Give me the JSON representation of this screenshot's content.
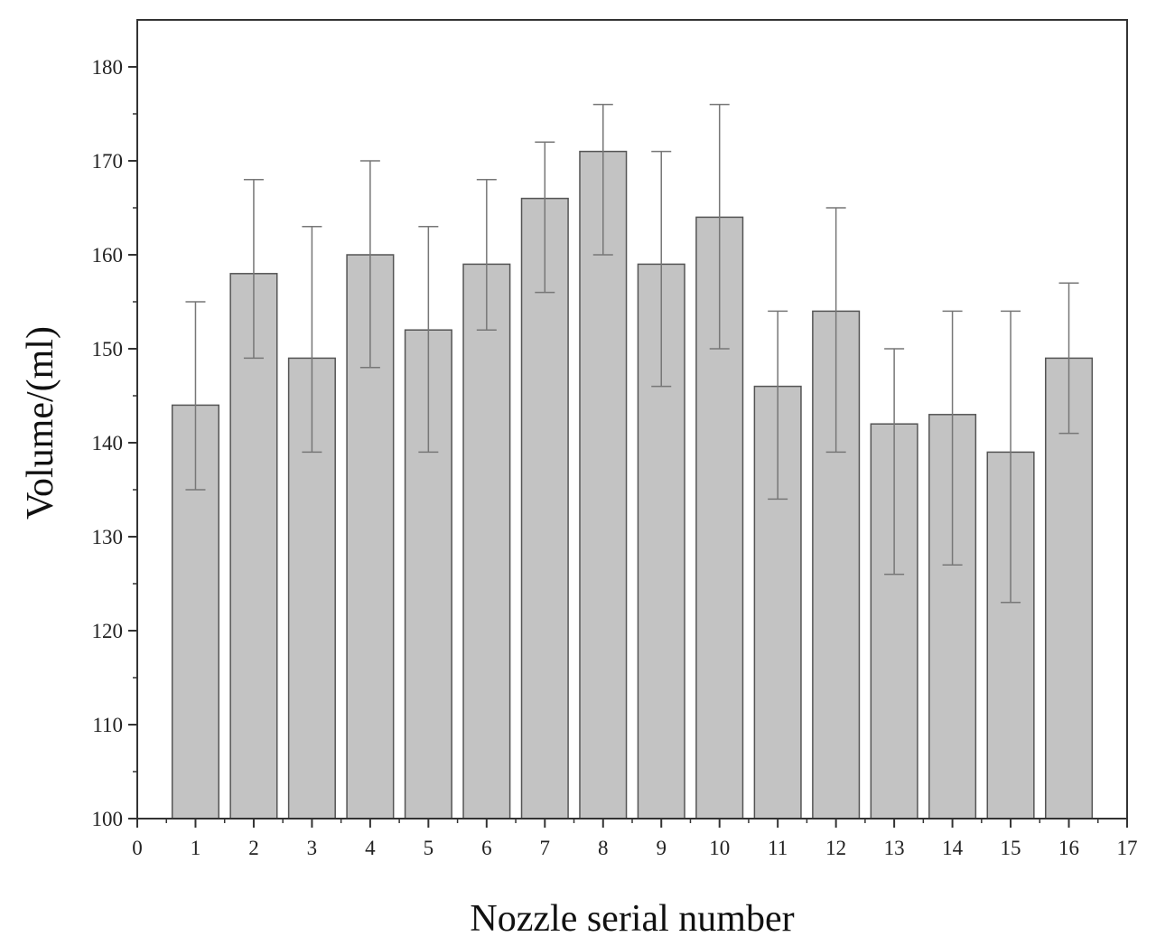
{
  "chart_data": {
    "type": "bar",
    "title": "",
    "xlabel": "Nozzle serial number",
    "ylabel": "Volume/(ml)",
    "xlim": [
      0,
      17
    ],
    "ylim": [
      100,
      185
    ],
    "x_ticks": [
      0,
      1,
      2,
      3,
      4,
      5,
      6,
      7,
      8,
      9,
      10,
      11,
      12,
      13,
      14,
      15,
      16,
      17
    ],
    "y_ticks": [
      100,
      110,
      120,
      130,
      140,
      150,
      160,
      170,
      180
    ],
    "grid": false,
    "legend": "none",
    "bar_color": "#c3c3c3",
    "bar_edge_color": "#555555",
    "error_bar_color": "#777777",
    "x": [
      1,
      2,
      3,
      4,
      5,
      6,
      7,
      8,
      9,
      10,
      11,
      12,
      13,
      14,
      15,
      16
    ],
    "values": [
      144,
      158,
      149,
      160,
      152,
      159,
      166,
      171,
      159,
      164,
      146,
      154,
      142,
      143,
      139,
      149
    ],
    "error_low": [
      135,
      149,
      139,
      148,
      139,
      152,
      156,
      160,
      146,
      150,
      134,
      139,
      126,
      127,
      123,
      141
    ],
    "error_high": [
      155,
      168,
      163,
      170,
      163,
      168,
      172,
      176,
      171,
      176,
      154,
      165,
      150,
      154,
      154,
      157
    ]
  }
}
